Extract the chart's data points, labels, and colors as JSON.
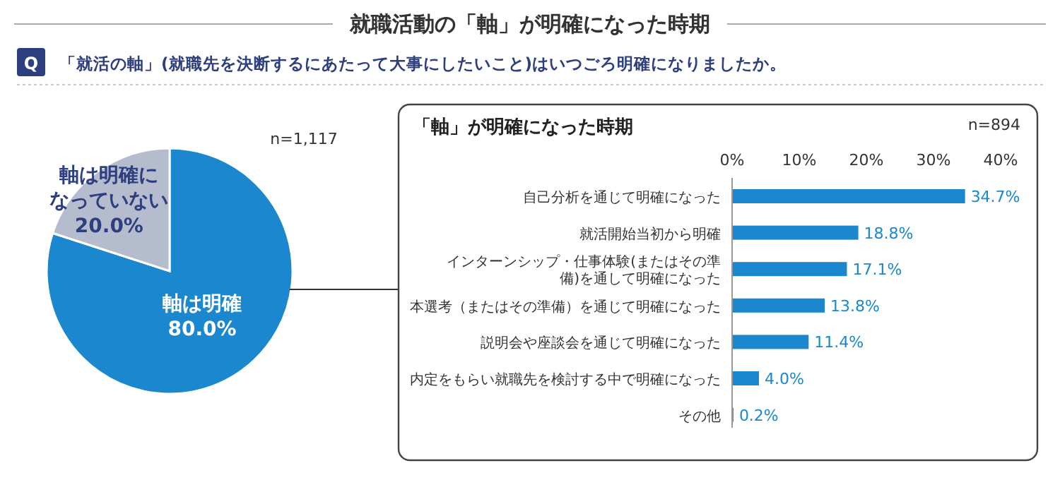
{
  "chart_data": [
    {
      "type": "pie",
      "title": "就職活動の「軸」が明確になった時期",
      "subtitle": "「就活の軸」(就職先を決断するにあたって大事にしたいこと)はいつごろ明確になりましたか。",
      "annotations": [
        "Q",
        "n=1,117"
      ],
      "categories": [
        "軸は明確",
        "軸は明確になっていない"
      ],
      "values": [
        80.0,
        20.0
      ],
      "colors": [
        "#1b87cf",
        "#b4bccd"
      ],
      "value_labels": [
        "80.0%",
        "20.0%"
      ]
    },
    {
      "type": "bar",
      "orientation": "horizontal",
      "title": "「軸」が明確になった時期",
      "annotations": [
        "n=894"
      ],
      "categories": [
        "自己分析を通じて明確になった",
        "就活開始当初から明確",
        "インターンシップ・仕事体験(またはその準備)を通して明確になった",
        "本選考（またはその準備）を通じて明確になった",
        "説明会や座談会を通じて明確になった",
        "内定をもらい就職先を検討する中で明確になった",
        "その他"
      ],
      "values": [
        34.7,
        18.8,
        17.1,
        13.8,
        11.4,
        4.0,
        0.2
      ],
      "color": "#1b87cf",
      "value_labels": [
        "34.7%",
        "18.8%",
        "17.1%",
        "13.8%",
        "11.4%",
        "4.0%",
        "0.2%"
      ],
      "xlim": [
        0,
        40
      ],
      "xticks": [
        {
          "value": 0,
          "label": "0%"
        },
        {
          "value": 10,
          "label": "10%"
        },
        {
          "value": 20,
          "label": "20%"
        },
        {
          "value": 30,
          "label": "30%"
        },
        {
          "value": 40,
          "label": "40%"
        }
      ],
      "grid": false
    }
  ]
}
